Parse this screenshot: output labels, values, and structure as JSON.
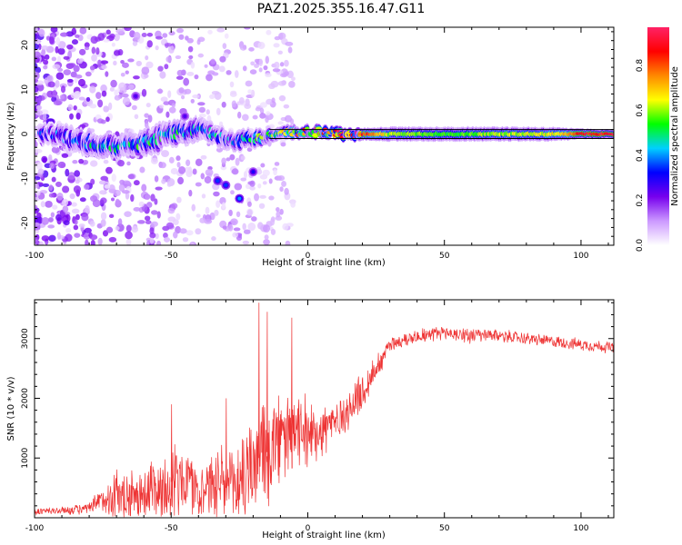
{
  "figure": {
    "title": "PAZ1.2025.355.16.47.G11"
  },
  "chart_data": [
    {
      "type": "heatmap",
      "title": "PAZ1.2025.355.16.47.G11",
      "xlabel": "Height of straight line (km)",
      "ylabel": "Frequency (Hz)",
      "xlim": [
        -100,
        112
      ],
      "ylim": [
        -25,
        24
      ],
      "xticks": [
        -100,
        -50,
        0,
        50,
        100
      ],
      "yticks": [
        -20,
        -10,
        0,
        10,
        20
      ],
      "colorbar": {
        "label": "Normalized spectral amplitude",
        "range": [
          0.0,
          0.97
        ],
        "ticks": [
          "0.0",
          "0.2",
          "0.4",
          "0.6",
          "0.8"
        ],
        "tick_values": [
          0.0,
          0.2,
          0.4,
          0.6,
          0.8
        ],
        "colors": [
          "#ffffff",
          "#cc99ff",
          "#7700ee",
          "#0000ff",
          "#00d0ff",
          "#00ff00",
          "#ffff00",
          "#ff8800",
          "#ff0000",
          "#ff2266"
        ]
      },
      "reference_lines_hz": [
        1.0,
        -1.0
      ],
      "ridge": [
        {
          "x": -95,
          "y": 0.0,
          "amp": 0.3,
          "spread": 2.0
        },
        {
          "x": -90,
          "y": -0.5,
          "amp": 0.35,
          "spread": 2.5
        },
        {
          "x": -85,
          "y": -1.5,
          "amp": 0.35,
          "spread": 2.5
        },
        {
          "x": -80,
          "y": -2.0,
          "amp": 0.4,
          "spread": 2.5
        },
        {
          "x": -75,
          "y": -2.5,
          "amp": 0.45,
          "spread": 2.5
        },
        {
          "x": -70,
          "y": -3.0,
          "amp": 0.45,
          "spread": 2.5
        },
        {
          "x": -65,
          "y": -2.5,
          "amp": 0.45,
          "spread": 2.5
        },
        {
          "x": -60,
          "y": -2.0,
          "amp": 0.45,
          "spread": 2.5
        },
        {
          "x": -55,
          "y": -1.0,
          "amp": 0.45,
          "spread": 3.0
        },
        {
          "x": -50,
          "y": 0.0,
          "amp": 0.45,
          "spread": 2.5
        },
        {
          "x": -45,
          "y": 0.5,
          "amp": 0.45,
          "spread": 2.5
        },
        {
          "x": -40,
          "y": 1.0,
          "amp": 0.4,
          "spread": 2.5
        },
        {
          "x": -35,
          "y": 0.0,
          "amp": 0.4,
          "spread": 2.0
        },
        {
          "x": -30,
          "y": -1.0,
          "amp": 0.4,
          "spread": 2.0
        },
        {
          "x": -25,
          "y": -1.5,
          "amp": 0.4,
          "spread": 2.0
        },
        {
          "x": -20,
          "y": -1.0,
          "amp": 0.45,
          "spread": 1.8
        },
        {
          "x": -15,
          "y": -0.5,
          "amp": 0.5,
          "spread": 1.5
        },
        {
          "x": -10,
          "y": 0.0,
          "amp": 0.55,
          "spread": 1.3
        },
        {
          "x": -5,
          "y": 0.5,
          "amp": 0.6,
          "spread": 1.2
        },
        {
          "x": 0,
          "y": 0.5,
          "amp": 0.7,
          "spread": 1.0
        },
        {
          "x": 5,
          "y": 0.5,
          "amp": 0.8,
          "spread": 1.0
        },
        {
          "x": 10,
          "y": 0.0,
          "amp": 0.85,
          "spread": 1.0
        },
        {
          "x": 20,
          "y": 0.0,
          "amp": 0.85,
          "spread": 1.2
        },
        {
          "x": 30,
          "y": 0.0,
          "amp": 0.6,
          "spread": 1.5
        },
        {
          "x": 50,
          "y": 0.0,
          "amp": 0.55,
          "spread": 1.5
        },
        {
          "x": 70,
          "y": 0.0,
          "amp": 0.6,
          "spread": 1.5
        },
        {
          "x": 90,
          "y": 0.0,
          "amp": 0.65,
          "spread": 1.4
        },
        {
          "x": 100,
          "y": 0.0,
          "amp": 0.85,
          "spread": 1.0
        },
        {
          "x": 112,
          "y": 0.0,
          "amp": 0.9,
          "spread": 0.8
        }
      ],
      "spots": [
        {
          "x": -33,
          "y": -10.5,
          "amp": 0.3
        },
        {
          "x": -30,
          "y": -11.5,
          "amp": 0.3
        },
        {
          "x": -25,
          "y": -14.5,
          "amp": 0.35
        },
        {
          "x": -20,
          "y": -8.5,
          "amp": 0.25
        },
        {
          "x": -63,
          "y": 8.5,
          "amp": 0.2
        },
        {
          "x": -45,
          "y": 4.0,
          "amp": 0.2
        }
      ]
    },
    {
      "type": "line",
      "xlabel": "Height of straight line (km)",
      "ylabel": "SNR (10 * v/v)",
      "xlim": [
        -100,
        112
      ],
      "ylim": [
        0,
        3650
      ],
      "xticks": [
        -100,
        -50,
        0,
        50,
        100
      ],
      "yticks": [
        1000,
        2000,
        3000
      ],
      "color": "#ee3333",
      "envelope": {
        "x": [
          -100,
          -90,
          -80,
          -75,
          -70,
          -65,
          -60,
          -55,
          -50,
          -45,
          -40,
          -35,
          -30,
          -25,
          -20,
          -18,
          -15,
          -10,
          -5,
          0,
          5,
          10,
          15,
          20,
          25,
          30,
          40,
          50,
          60,
          70,
          80,
          90,
          100,
          112
        ],
        "mean": [
          100,
          120,
          150,
          300,
          400,
          350,
          450,
          500,
          600,
          650,
          500,
          600,
          500,
          600,
          900,
          1000,
          1100,
          1300,
          1400,
          1400,
          1500,
          1600,
          1800,
          2100,
          2500,
          2900,
          3050,
          3100,
          3050,
          3050,
          3000,
          2950,
          2900,
          2850
        ],
        "amp": [
          80,
          80,
          120,
          300,
          500,
          500,
          600,
          800,
          800,
          700,
          700,
          700,
          700,
          900,
          1100,
          1300,
          1200,
          900,
          700,
          700,
          600,
          500,
          400,
          400,
          300,
          150,
          150,
          150,
          150,
          130,
          120,
          120,
          120,
          120
        ]
      },
      "peaks": [
        {
          "x": -18,
          "y": 3600
        },
        {
          "x": -15,
          "y": 3450
        },
        {
          "x": -6,
          "y": 3350
        },
        {
          "x": -50,
          "y": 1900
        },
        {
          "x": -30,
          "y": 2000
        }
      ]
    }
  ]
}
